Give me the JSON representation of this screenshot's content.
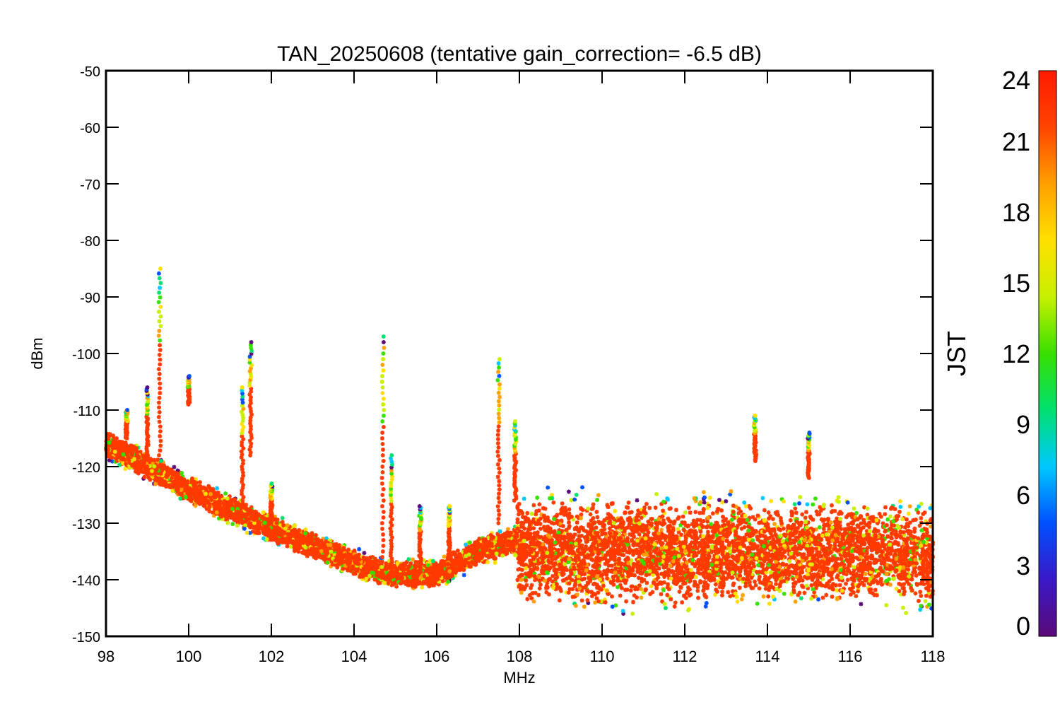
{
  "chart_data": {
    "type": "scatter",
    "title": "TAN_20250608 (tentative gain_correction= -6.5 dB)",
    "xlabel": "MHz",
    "ylabel": "dBm",
    "xlim": [
      98,
      118
    ],
    "ylim": [
      -150,
      -50
    ],
    "x_ticks": [
      98,
      100,
      102,
      104,
      106,
      108,
      110,
      112,
      114,
      116,
      118
    ],
    "y_ticks": [
      -50,
      -60,
      -70,
      -80,
      -90,
      -100,
      -110,
      -120,
      -130,
      -140,
      -150
    ],
    "grid": false,
    "marker": "asterisk",
    "colorbar": {
      "label": "JST",
      "range": [
        0,
        24
      ],
      "ticks": [
        24,
        21,
        18,
        15,
        12,
        9,
        6,
        3,
        0
      ],
      "colormap": [
        "#5a0a78",
        "#3a18c8",
        "#0050ff",
        "#00c8ff",
        "#00e070",
        "#38e000",
        "#c8f000",
        "#ffe000",
        "#ffa000",
        "#ff4400",
        "#ff1a00"
      ]
    },
    "noise_floor": [
      {
        "x": 98.0,
        "y": -116
      },
      {
        "x": 100.0,
        "y": -124
      },
      {
        "x": 102.0,
        "y": -131
      },
      {
        "x": 104.0,
        "y": -137
      },
      {
        "x": 104.8,
        "y": -139
      },
      {
        "x": 105.0,
        "y": -139
      },
      {
        "x": 106.0,
        "y": -139
      },
      {
        "x": 107.0,
        "y": -135
      },
      {
        "x": 107.95,
        "y": -133
      },
      {
        "x": 108.0,
        "y": -135
      },
      {
        "x": 111.5,
        "y": -135
      },
      {
        "x": 111.8,
        "y": -136
      },
      {
        "x": 112.3,
        "y": -135
      },
      {
        "x": 116.7,
        "y": -135
      },
      {
        "x": 118.0,
        "y": -136
      }
    ],
    "band_spread": [
      {
        "x0": 98.0,
        "x1": 107.95,
        "spread": 3
      },
      {
        "x0": 107.95,
        "x1": 112.3,
        "spread": 12
      },
      {
        "x0": 112.3,
        "x1": 118.0,
        "spread": 11
      }
    ],
    "peaks": [
      {
        "x": 98.5,
        "y_top": -110,
        "y_bottom": -115
      },
      {
        "x": 99.0,
        "y_top": -106,
        "y_bottom": -118
      },
      {
        "x": 99.3,
        "y_top": -85,
        "y_bottom": -118
      },
      {
        "x": 100.0,
        "y_top": -104,
        "y_bottom": -109
      },
      {
        "x": 101.3,
        "y_top": -106,
        "y_bottom": -127
      },
      {
        "x": 101.5,
        "y_top": -98,
        "y_bottom": -118
      },
      {
        "x": 102.0,
        "y_top": -123,
        "y_bottom": -130
      },
      {
        "x": 104.7,
        "y_top": -97,
        "y_bottom": -136
      },
      {
        "x": 104.9,
        "y_top": -118,
        "y_bottom": -139
      },
      {
        "x": 105.6,
        "y_top": -127,
        "y_bottom": -138
      },
      {
        "x": 106.3,
        "y_top": -127,
        "y_bottom": -136
      },
      {
        "x": 107.5,
        "y_top": -101,
        "y_bottom": -130
      },
      {
        "x": 107.9,
        "y_top": -112,
        "y_bottom": -126
      },
      {
        "x": 113.7,
        "y_top": -111,
        "y_bottom": -119
      },
      {
        "x": 115.0,
        "y_top": -114,
        "y_bottom": -122
      }
    ]
  }
}
